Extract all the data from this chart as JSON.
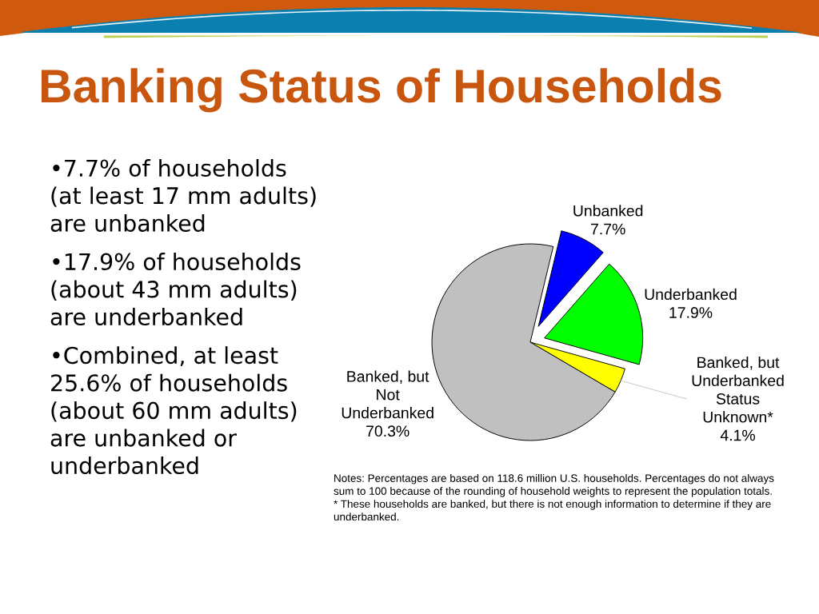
{
  "chart_data": {
    "type": "pie",
    "title": "Banking Status of Households",
    "categories": [
      "Unbanked",
      "Underbanked",
      "Banked, but\nUnderbanked\nStatus\nUnknown*",
      "Banked, but\nNot\nUnderbanked"
    ],
    "values": [
      7.7,
      17.9,
      4.1,
      70.3
    ],
    "colors": [
      "#0000ff",
      "#00ff00",
      "#ffff00",
      "#c0c0c0"
    ],
    "value_labels": [
      "7.7%",
      "17.9%",
      "4.1%",
      "70.3%"
    ],
    "annotations": [
      "•7.7% of households\n(at least 17 mm adults)\nare unbanked",
      "•17.9% of households\n(about 43 mm adults)\nare underbanked",
      "•Combined, at least\n25.6% of households\n(about 60 mm adults)\nare unbanked or\nunderbanked",
      "Notes: Percentages are based on 118.6 million U.S. households. Percentages do not always\nsum to 100 because of the rounding of household weights to represent the population totals.\n* These households are banked, but there is not enough information to determine if they are\nunderbanked."
    ]
  }
}
